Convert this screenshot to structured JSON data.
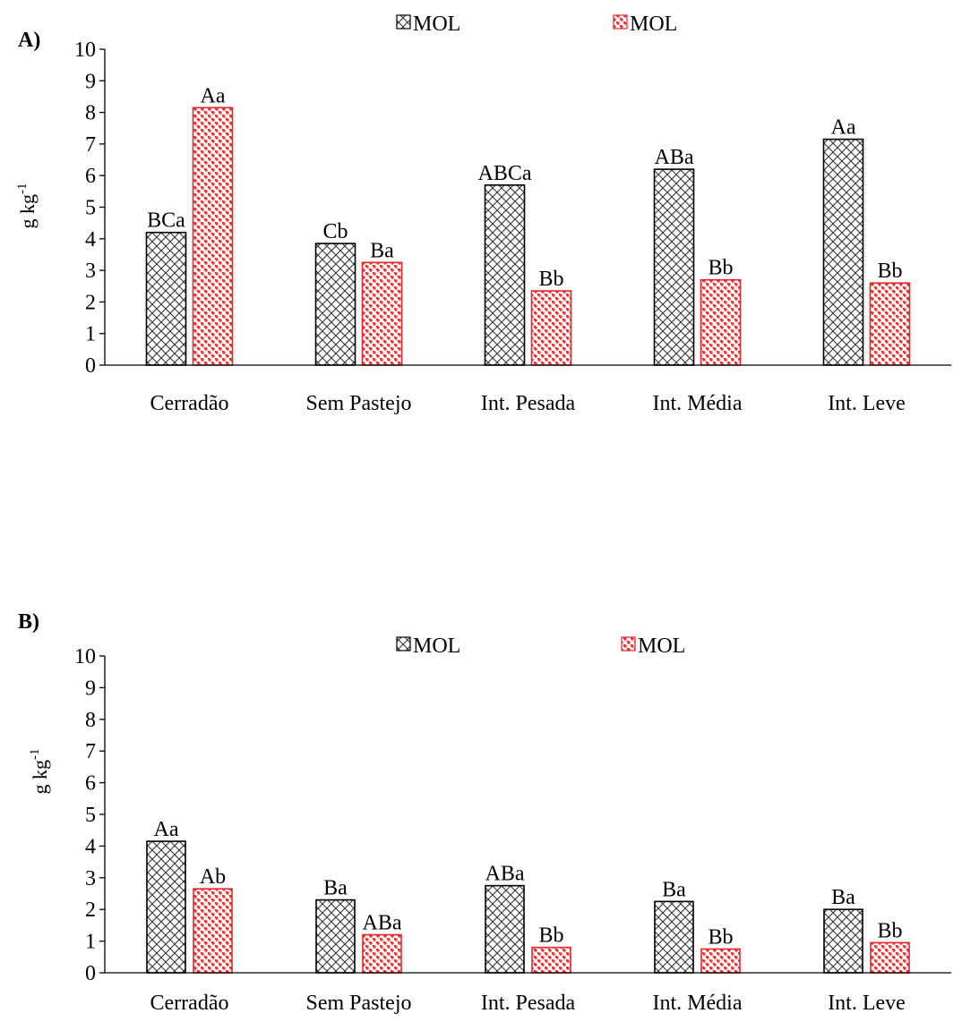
{
  "chart_data": [
    {
      "panel_label": "A)",
      "type": "bar",
      "categories": [
        "Cerradão",
        "Sem Pastejo",
        "Int. Pesada",
        "Int. Média",
        "Int. Leve"
      ],
      "ylabel": "g kg",
      "ylabel_sup": "-1",
      "ylim": [
        0,
        10
      ],
      "yticks": [
        "0",
        "1",
        "2",
        "3",
        "4",
        "5",
        "6",
        "7",
        "8",
        "9",
        "10"
      ],
      "legend_position": "top",
      "series": [
        {
          "name": "MOL",
          "values": [
            4.2,
            3.85,
            5.7,
            6.2,
            7.15
          ],
          "letters": [
            "BCa",
            "Cb",
            "ABCa",
            "ABa",
            "Aa"
          ],
          "color": "#000000",
          "pattern": "diamond-hatch"
        },
        {
          "name": "MOL",
          "values": [
            8.15,
            3.25,
            2.35,
            2.7,
            2.6
          ],
          "letters": [
            "Aa",
            "Ba",
            "Bb",
            "Bb",
            "Bb"
          ],
          "color": "#e8262a",
          "pattern": "weave"
        }
      ]
    },
    {
      "panel_label": "B)",
      "type": "bar",
      "categories": [
        "Cerradão",
        "Sem Pastejo",
        "Int. Pesada",
        "Int. Média",
        "Int. Leve"
      ],
      "ylabel": "g kg",
      "ylabel_sup": "-1",
      "ylim": [
        0,
        10
      ],
      "yticks": [
        "0",
        "1",
        "2",
        "3",
        "4",
        "5",
        "6",
        "7",
        "8",
        "9",
        "10"
      ],
      "legend_position": "top",
      "series": [
        {
          "name": "MOL",
          "values": [
            4.15,
            2.3,
            2.75,
            2.25,
            2.0
          ],
          "letters": [
            "Aa",
            "Ba",
            "ABa",
            "Ba",
            "Ba"
          ],
          "color": "#000000",
          "pattern": "diamond-hatch"
        },
        {
          "name": "MOL",
          "values": [
            2.65,
            1.2,
            0.8,
            0.75,
            0.95
          ],
          "letters": [
            "Ab",
            "ABa",
            "Bb",
            "Bb",
            "Bb"
          ],
          "color": "#e8262a",
          "pattern": "weave"
        }
      ]
    }
  ]
}
